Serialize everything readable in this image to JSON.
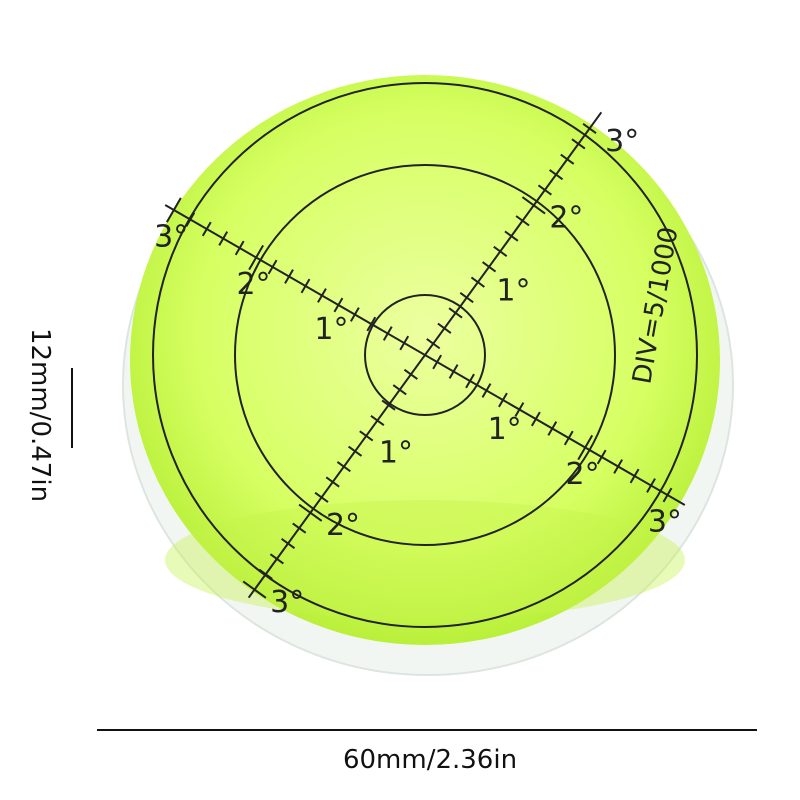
{
  "product": {
    "dial_labels": {
      "one": "1°",
      "two": "2°",
      "three": "3°"
    },
    "division_text": "DIV=5/1000",
    "bubble_color": "#d8ff6a",
    "rim_color": "#eef4f0"
  },
  "dimensions": {
    "width": "60mm/2.36in",
    "height": "12mm/0.47in"
  }
}
